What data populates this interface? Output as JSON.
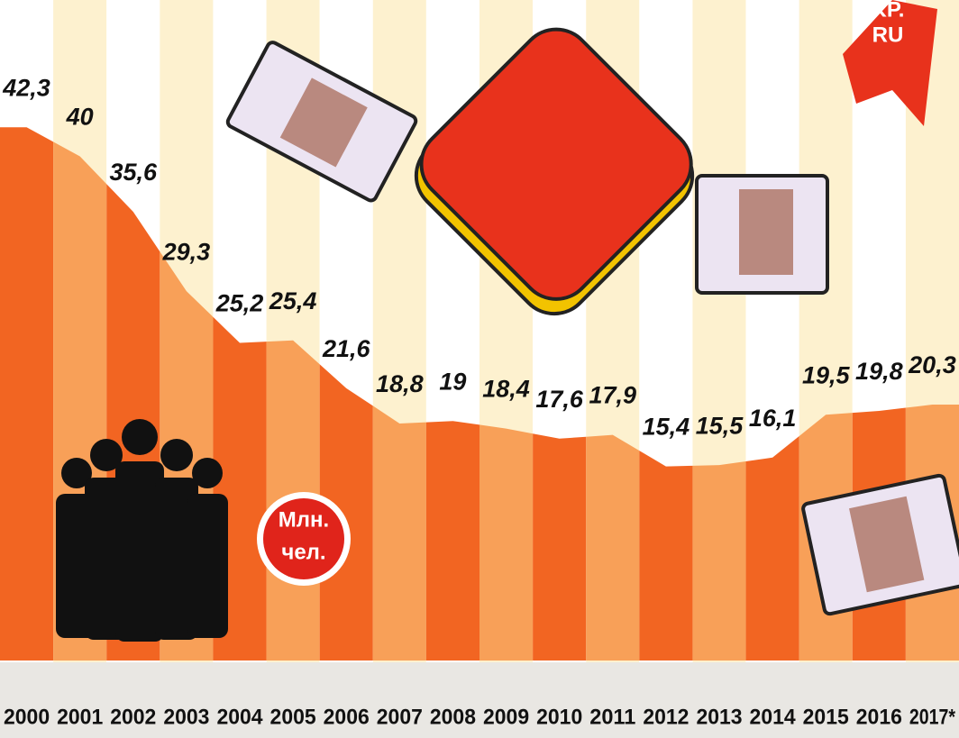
{
  "chart_data": {
    "type": "area",
    "categories": [
      "2000",
      "2001",
      "2002",
      "2003",
      "2004",
      "2005",
      "2006",
      "2007",
      "2008",
      "2009",
      "2010",
      "2011",
      "2012",
      "2013",
      "2014",
      "2015",
      "2016",
      "2017*"
    ],
    "values": [
      42.3,
      40,
      35.6,
      29.3,
      25.2,
      25.4,
      21.6,
      18.8,
      19,
      18.4,
      17.6,
      17.9,
      15.4,
      15.5,
      16.1,
      19.5,
      19.8,
      20.3
    ],
    "value_labels": [
      "42,3",
      "40",
      "35,6",
      "29,3",
      "25,2",
      "25,4",
      "21,6",
      "18,8",
      "19",
      "18,4",
      "17,6",
      "17,9",
      "15,4",
      "15,5",
      "16,1",
      "19,5",
      "19,8",
      "20,3"
    ],
    "colors": [
      "#f26522",
      "#f8a058"
    ],
    "background_colors": [
      "#ffffff",
      "#fdf1cf"
    ],
    "ylim": [
      0,
      52.4
    ],
    "unit_label": [
      "Млн.",
      "чел."
    ],
    "logo": [
      "KP.",
      "RU"
    ]
  }
}
